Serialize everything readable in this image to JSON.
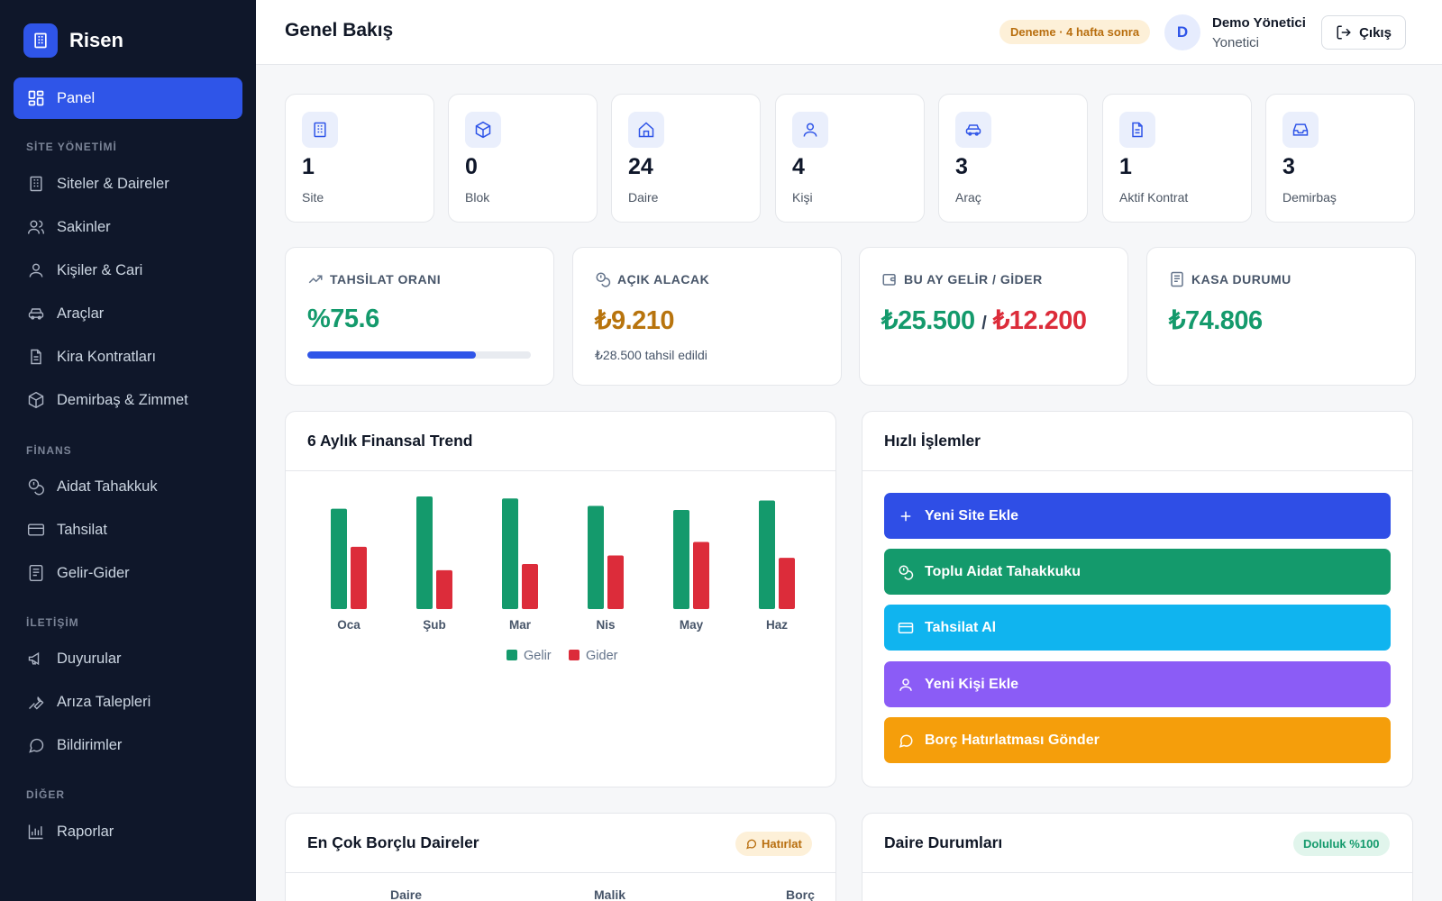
{
  "app": {
    "name": "Risen"
  },
  "sidebar": {
    "active": {
      "label": "Panel",
      "icon": "dashboard-icon"
    },
    "sections": [
      {
        "title": "SİTE YÖNETİMİ",
        "items": [
          {
            "label": "Siteler & Daireler",
            "icon": "building-icon"
          },
          {
            "label": "Sakinler",
            "icon": "users-icon"
          },
          {
            "label": "Kişiler & Cari",
            "icon": "user-icon"
          },
          {
            "label": "Araçlar",
            "icon": "car-icon"
          },
          {
            "label": "Kira Kontratları",
            "icon": "document-icon"
          },
          {
            "label": "Demirbaş & Zimmet",
            "icon": "box-icon"
          }
        ]
      },
      {
        "title": "FİNANS",
        "items": [
          {
            "label": "Aidat Tahakkuk",
            "icon": "coins-icon"
          },
          {
            "label": "Tahsilat",
            "icon": "credit-card-icon"
          },
          {
            "label": "Gelir-Gider",
            "icon": "ledger-icon"
          }
        ]
      },
      {
        "title": "İLETİŞİM",
        "items": [
          {
            "label": "Duyurular",
            "icon": "megaphone-icon"
          },
          {
            "label": "Arıza Talepleri",
            "icon": "wrench-icon"
          },
          {
            "label": "Bildirimler",
            "icon": "chat-bubble-icon"
          }
        ]
      },
      {
        "title": "DİĞER",
        "items": [
          {
            "label": "Raporlar",
            "icon": "bar-chart-icon"
          }
        ]
      }
    ]
  },
  "header": {
    "title": "Genel Bakış",
    "trial_badge": "Deneme · 4 hafta sonra",
    "avatar_initial": "D",
    "user_name": "Demo Yönetici",
    "user_role": "Yonetici",
    "logout_label": "Çıkış"
  },
  "stats": [
    {
      "value": "1",
      "label": "Site",
      "icon": "building-icon"
    },
    {
      "value": "0",
      "label": "Blok",
      "icon": "box-icon"
    },
    {
      "value": "24",
      "label": "Daire",
      "icon": "home-icon"
    },
    {
      "value": "4",
      "label": "Kişi",
      "icon": "user-icon"
    },
    {
      "value": "3",
      "label": "Araç",
      "icon": "car-icon"
    },
    {
      "value": "1",
      "label": "Aktif Kontrat",
      "icon": "document-icon"
    },
    {
      "value": "3",
      "label": "Demirbaş",
      "icon": "inbox-icon"
    }
  ],
  "kpis": {
    "collection": {
      "title": "TAHSİLAT ORANI",
      "value": "%75.6",
      "progress": 0.756,
      "icon": "trend-up-icon"
    },
    "receivable": {
      "title": "AÇIK ALACAK",
      "value": "₺9.210",
      "sub": "₺28.500 tahsil edildi",
      "icon": "coins-icon"
    },
    "income_expense": {
      "title": "BU AY GELİR / GİDER",
      "income": "₺25.500",
      "separator": "/",
      "expense": "₺12.200",
      "icon": "wallet-icon"
    },
    "cash": {
      "title": "KASA DURUMU",
      "value": "₺74.806",
      "icon": "ledger-icon"
    }
  },
  "trend_panel": {
    "title": "6 Aylık Finansal Trend"
  },
  "chart_data": {
    "type": "bar",
    "title": "6 Aylık Finansal Trend",
    "categories": [
      "Oca",
      "Şub",
      "Mar",
      "Nis",
      "May",
      "Haz"
    ],
    "series": [
      {
        "name": "Gelir",
        "values": [
          24500,
          27500,
          27000,
          25200,
          24200,
          26500
        ],
        "color": "#149a6c"
      },
      {
        "name": "Gider",
        "values": [
          15200,
          9500,
          11000,
          13100,
          16400,
          12500
        ],
        "color": "#dc2c3a"
      }
    ],
    "legend": "bottom-center",
    "grid": false
  },
  "quick_actions": {
    "title": "Hızlı İşlemler",
    "buttons": [
      {
        "label": "Yeni Site Ekle",
        "color": "#2f4ee6",
        "icon": "plus-icon"
      },
      {
        "label": "Toplu Aidat Tahakkuku",
        "color": "#149a6c",
        "icon": "coins-icon"
      },
      {
        "label": "Tahsilat Al",
        "color": "#10b4ef",
        "icon": "credit-card-icon"
      },
      {
        "label": "Yeni Kişi Ekle",
        "color": "#8b5cf6",
        "icon": "user-icon"
      },
      {
        "label": "Borç Hatırlatması Gönder",
        "color": "#f59e0b",
        "icon": "chat-bubble-icon"
      }
    ]
  },
  "debtors_panel": {
    "title": "En Çok Borçlu Daireler",
    "remind_label": "Hatırlat",
    "columns": [
      "Daire",
      "Malik",
      "Borç"
    ]
  },
  "units_panel": {
    "title": "Daire Durumları",
    "occupancy_badge": "Doluluk %100"
  }
}
